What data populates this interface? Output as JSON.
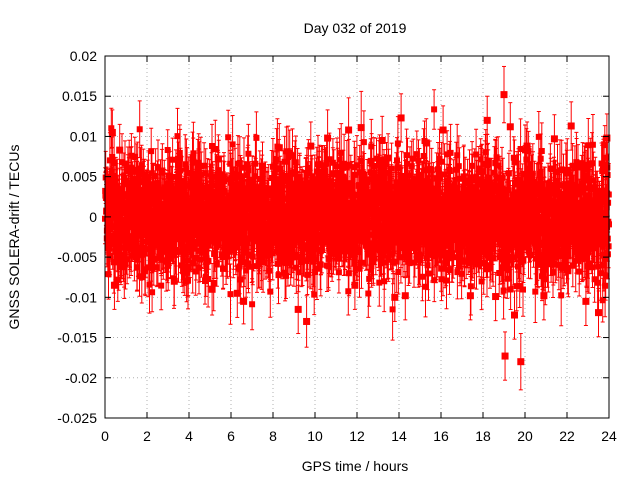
{
  "chart_data": {
    "type": "scatter",
    "title": "Day 032 of 2019",
    "xlabel": "GPS time / hours",
    "ylabel": "GNSS SOLERA-drift / TECUs",
    "xlim": [
      0,
      24
    ],
    "ylim": [
      -0.025,
      0.02
    ],
    "xticks": [
      0,
      2,
      4,
      6,
      8,
      10,
      12,
      14,
      16,
      18,
      20,
      22,
      24
    ],
    "xtick_labels": [
      "0",
      "2",
      "4",
      "6",
      "8",
      "10",
      "12",
      "14",
      "16",
      "18",
      "20",
      "22",
      "24"
    ],
    "yticks": [
      -0.025,
      -0.02,
      -0.015,
      -0.01,
      -0.005,
      0,
      0.005,
      0.01,
      0.015,
      0.02
    ],
    "ytick_labels": [
      "-0.025",
      "-0.02",
      "-0.015",
      "-0.01",
      "-0.005",
      "0",
      "0.005",
      "0.01",
      "0.015",
      "0.02"
    ],
    "grid": true,
    "series_color": "#ff0000",
    "marker": "square",
    "error_bars": true,
    "series": [
      {
        "name": "SOLERA-drift",
        "x": [
          0.05,
          0.35,
          0.45,
          0.7,
          3.3,
          3.5,
          4.2,
          5.1,
          5.4,
          6.3,
          6.6,
          7.5,
          8.3,
          9.2,
          9.6,
          9.8,
          10.6,
          11.6,
          11.9,
          12.2,
          13.2,
          13.8,
          14.1,
          14.3,
          15.3,
          16.1,
          17.4,
          18.2,
          18.6,
          19.0,
          19.05,
          19.3,
          19.5,
          19.8,
          20.1,
          20.9,
          21.4,
          22.2,
          22.9,
          23.5,
          23.9
        ],
        "y": [
          0.003,
          0.0105,
          -0.0085,
          0.0083,
          -0.008,
          0.0065,
          0.0068,
          -0.009,
          0.0072,
          -0.0095,
          -0.0105,
          0.0063,
          0.0086,
          -0.0115,
          -0.013,
          0.0088,
          0.0098,
          0.0108,
          -0.0085,
          0.0111,
          0.0095,
          -0.01,
          0.0123,
          -0.0098,
          0.0092,
          0.0108,
          -0.0098,
          0.012,
          -0.0099,
          0.0152,
          -0.0173,
          0.0112,
          -0.0122,
          -0.018,
          0.0088,
          -0.0098,
          0.0097,
          0.0113,
          -0.0105,
          -0.0119,
          0.0098
        ],
        "yerr": [
          0.003,
          0.0028,
          0.003,
          0.0032,
          0.003,
          0.0028,
          0.003,
          0.0032,
          0.003,
          0.003,
          0.0028,
          0.003,
          0.003,
          0.003,
          0.0032,
          0.003,
          0.0035,
          0.004,
          0.003,
          0.0045,
          0.003,
          0.003,
          0.003,
          0.003,
          0.003,
          0.003,
          0.003,
          0.003,
          0.003,
          0.0035,
          0.003,
          0.003,
          0.003,
          0.0035,
          0.003,
          0.003,
          0.003,
          0.003,
          0.003,
          0.003,
          0.003
        ]
      }
    ],
    "band": {
      "description": "dense cloud of several thousand points with error bars",
      "center": 0,
      "typical_spread": 0.004,
      "typical_yerr": 0.003,
      "n_points": 2880
    }
  }
}
